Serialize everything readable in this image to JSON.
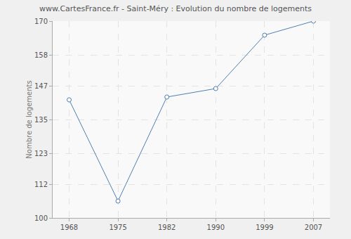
{
  "chart_data": {
    "type": "line",
    "title": "www.CartesFrance.fr - Saint-Méry : Evolution du nombre de logements",
    "y_label": "Nombre de logements",
    "categories": [
      "1968",
      "1975",
      "1982",
      "1990",
      "1999",
      "2007"
    ],
    "values": [
      142,
      106,
      143,
      146,
      165,
      170
    ],
    "color": "#4f7fb0",
    "marker": "circle",
    "ylim": [
      100,
      170
    ],
    "yticks": [
      100,
      112,
      123,
      135,
      147,
      158,
      170
    ],
    "grid": true
  }
}
